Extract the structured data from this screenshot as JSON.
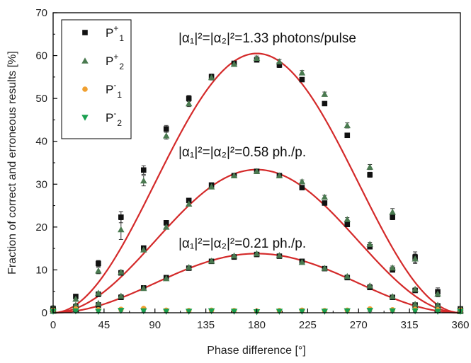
{
  "chart_data": {
    "type": "scatter",
    "xlabel": "Phase difference [°]",
    "ylabel": "Fraction of correct and erroneous results [%]",
    "xlim": [
      0,
      360
    ],
    "ylim": [
      0,
      70
    ],
    "xticks": [
      0,
      45,
      90,
      135,
      180,
      225,
      270,
      315,
      360
    ],
    "yticks": [
      0,
      10,
      20,
      30,
      40,
      50,
      60,
      70
    ],
    "grid": false,
    "legend_position": "top-left",
    "annotations": [
      {
        "text": "|α₁|²=|α₂|²=1.33 photons/pulse",
        "x": 180,
        "y": 64
      },
      {
        "text": "|α₁|²=|α₂|²=0.58 ph./p.",
        "x": 180,
        "y": 37
      },
      {
        "text": "|α₁|²=|α₂|²=0.21 ph./p.",
        "x": 180,
        "y": 17
      }
    ],
    "legend": [
      {
        "base": "P",
        "sup": "+",
        "sub": "1",
        "marker": "square",
        "color": "#111111"
      },
      {
        "base": "P",
        "sup": "+",
        "sub": "2",
        "marker": "triangle-up",
        "color": "#4a7a50"
      },
      {
        "base": "P",
        "sup": "-",
        "sub": "1",
        "marker": "circle",
        "color": "#f0a030"
      },
      {
        "base": "P",
        "sup": "-",
        "sub": "2",
        "marker": "triangle-down",
        "color": "#1aa050"
      }
    ],
    "x": [
      0,
      20,
      40,
      60,
      80,
      100,
      120,
      140,
      160,
      180,
      200,
      220,
      240,
      260,
      280,
      300,
      320,
      340,
      360
    ],
    "series": [
      {
        "group": "1.33",
        "key": "P+1",
        "marker": "square",
        "color": "#111111",
        "values": [
          1.0,
          3.8,
          11.5,
          22.3,
          33.3,
          42.9,
          50.0,
          55.1,
          58.2,
          59.0,
          57.8,
          54.4,
          48.8,
          41.4,
          32.2,
          22.3,
          13.0,
          4.9,
          0.9
        ],
        "errors": [
          0.4,
          0.5,
          0.7,
          1.3,
          1.0,
          0.8,
          0.7,
          0.6,
          0.5,
          0.5,
          0.6,
          0.5,
          0.4,
          0.5,
          0.6,
          0.6,
          1.2,
          0.9,
          0.4
        ]
      },
      {
        "group": "1.33",
        "key": "P+2",
        "marker": "triangle-up",
        "color": "#4a7a50",
        "values": [
          1.2,
          3.2,
          9.8,
          19.4,
          30.8,
          41.3,
          48.8,
          54.9,
          58.0,
          59.4,
          58.6,
          56.0,
          51.0,
          43.7,
          34.0,
          23.5,
          12.6,
          4.4,
          1.0
        ],
        "errors": [
          0.4,
          0.5,
          0.7,
          2.3,
          1.2,
          0.8,
          0.7,
          0.6,
          0.5,
          0.5,
          0.5,
          0.5,
          0.5,
          0.6,
          0.6,
          0.8,
          1.1,
          0.7,
          0.4
        ]
      },
      {
        "group": "0.58",
        "key": "P+1",
        "marker": "square",
        "color": "#111111",
        "values": [
          0.7,
          1.4,
          4.3,
          9.3,
          15.1,
          21.0,
          26.2,
          29.8,
          32.0,
          33.0,
          32.0,
          29.2,
          25.6,
          20.6,
          15.4,
          10.0,
          5.2,
          1.6,
          0.5
        ],
        "errors": [
          0.3,
          0.3,
          0.3,
          0.4,
          0.4,
          0.4,
          0.4,
          0.4,
          0.4,
          0.4,
          0.4,
          0.4,
          0.4,
          0.4,
          0.4,
          0.4,
          0.3,
          0.3,
          0.3
        ]
      },
      {
        "group": "0.58",
        "key": "P+2",
        "marker": "triangle-up",
        "color": "#4a7a50",
        "values": [
          0.8,
          1.8,
          4.6,
          9.5,
          14.7,
          20.0,
          25.4,
          29.4,
          32.0,
          33.0,
          32.0,
          30.6,
          27.0,
          21.8,
          16.0,
          10.5,
          5.5,
          1.8,
          0.6
        ],
        "errors": [
          0.3,
          0.3,
          0.3,
          0.4,
          0.4,
          0.4,
          0.4,
          0.4,
          0.4,
          0.4,
          0.4,
          0.4,
          0.4,
          0.4,
          0.4,
          0.4,
          0.3,
          0.3,
          0.3
        ]
      },
      {
        "group": "0.21",
        "key": "P+1",
        "marker": "square",
        "color": "#111111",
        "values": [
          0.4,
          0.8,
          1.8,
          3.6,
          5.8,
          8.2,
          10.4,
          12.0,
          13.0,
          13.6,
          13.2,
          12.0,
          10.3,
          8.2,
          5.9,
          3.6,
          1.8,
          0.6,
          0.3
        ],
        "errors": [
          0.2,
          0.2,
          0.2,
          0.3,
          0.3,
          0.3,
          0.3,
          0.3,
          0.3,
          0.3,
          0.3,
          0.3,
          0.3,
          0.3,
          0.3,
          0.3,
          0.2,
          0.2,
          0.2
        ]
      },
      {
        "group": "0.21",
        "key": "P+2",
        "marker": "triangle-up",
        "color": "#4a7a50",
        "values": [
          0.4,
          0.9,
          2.2,
          3.9,
          5.7,
          8.0,
          10.6,
          12.1,
          13.3,
          13.8,
          13.4,
          11.8,
          10.4,
          8.5,
          6.3,
          3.8,
          2.0,
          0.8,
          0.3
        ],
        "errors": [
          0.2,
          0.2,
          0.2,
          0.3,
          0.3,
          0.3,
          0.3,
          0.3,
          0.3,
          0.3,
          0.3,
          0.3,
          0.3,
          0.3,
          0.3,
          0.3,
          0.2,
          0.2,
          0.2
        ]
      },
      {
        "group": "all",
        "key": "P-1",
        "marker": "circle",
        "color": "#f0a030",
        "values": [
          0.6,
          0.9,
          0.7,
          0.8,
          1.0,
          0.6,
          0.5,
          0.6,
          0.5,
          0.4,
          0.5,
          0.6,
          0.5,
          0.6,
          0.9,
          0.7,
          0.8,
          0.7,
          0.6
        ],
        "errors": [
          0.2,
          0.2,
          0.2,
          0.2,
          0.2,
          0.2,
          0.2,
          0.2,
          0.2,
          0.2,
          0.2,
          0.2,
          0.2,
          0.2,
          0.2,
          0.2,
          0.2,
          0.2,
          0.2
        ]
      },
      {
        "group": "all",
        "key": "P-2",
        "marker": "triangle-down",
        "color": "#1aa050",
        "values": [
          0.3,
          0.4,
          0.3,
          0.5,
          0.4,
          0.3,
          0.3,
          0.4,
          0.3,
          0.2,
          0.3,
          0.3,
          0.3,
          0.4,
          0.5,
          0.4,
          0.4,
          0.3,
          0.3
        ],
        "errors": [
          0.2,
          0.2,
          0.2,
          0.2,
          0.2,
          0.2,
          0.2,
          0.2,
          0.2,
          0.2,
          0.2,
          0.2,
          0.2,
          0.2,
          0.2,
          0.2,
          0.2,
          0.2,
          0.2
        ]
      }
    ],
    "fit_curves": [
      {
        "group": "1.33",
        "amplitude": 60.5,
        "color": "#d42a2a"
      },
      {
        "group": "0.58",
        "amplitude": 33.4,
        "color": "#d42a2a"
      },
      {
        "group": "0.21",
        "amplitude": 13.8,
        "color": "#d42a2a"
      }
    ]
  }
}
